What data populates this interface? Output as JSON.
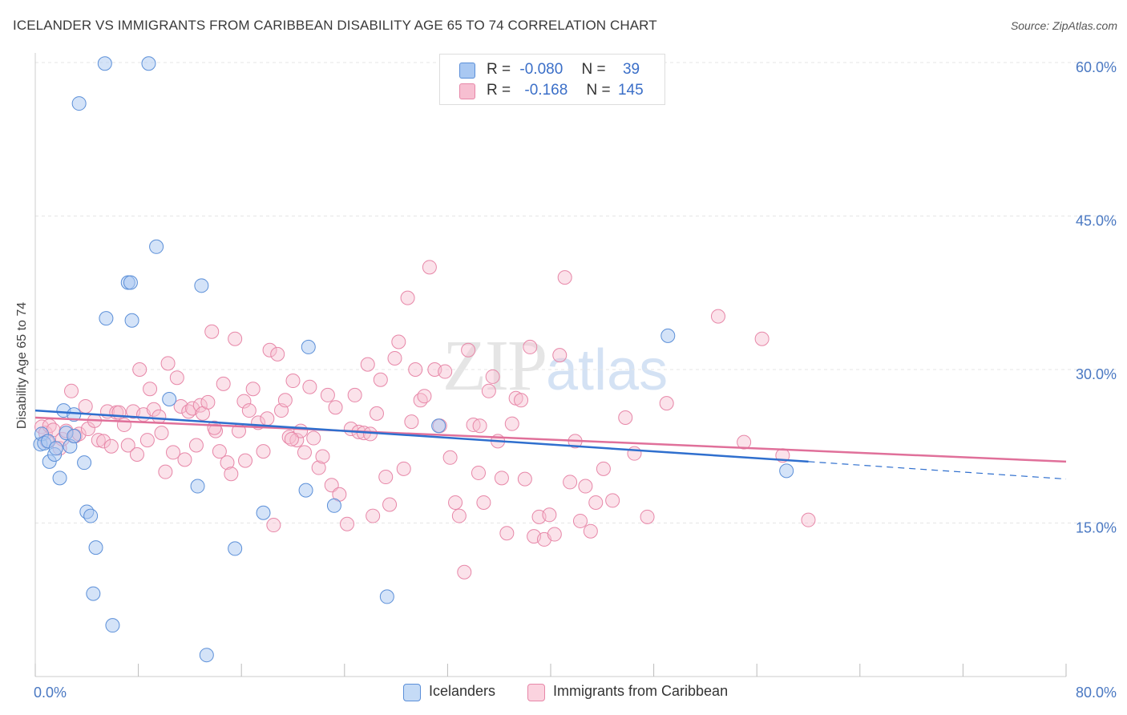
{
  "header": {
    "title": "ICELANDER VS IMMIGRANTS FROM CARIBBEAN DISABILITY AGE 65 TO 74 CORRELATION CHART",
    "source": "Source: ZipAtlas.com"
  },
  "watermark": {
    "zip": "ZIP",
    "atlas": "atlas"
  },
  "legend": {
    "rows": [
      {
        "r_label": "R =",
        "r_value": "-0.080",
        "n_label": "N =",
        "n_value": "39",
        "color": "#a9c8f2",
        "border": "#5b8fd8"
      },
      {
        "r_label": "R =",
        "r_value": "-0.168",
        "n_label": "N =",
        "n_value": "145",
        "color": "#f7bfd1",
        "border": "#e787a8"
      }
    ]
  },
  "bottom_legend": [
    {
      "label": "Icelanders",
      "color": "#c5dbf6",
      "border": "#5b8fd8"
    },
    {
      "label": "Immigrants from Caribbean",
      "color": "#fbd3df",
      "border": "#e787a8"
    }
  ],
  "colors": {
    "blue_fill": "#a9c8f2",
    "blue_stroke": "#5b8fd8",
    "blue_line": "#2f6fce",
    "pink_fill": "#f7bfd1",
    "pink_stroke": "#e787a8",
    "pink_line": "#e0709a",
    "grid": "#e6e6e6",
    "axis_label": "#4a78c2"
  },
  "chart_data": {
    "type": "scatter",
    "title": "ICELANDER VS IMMIGRANTS FROM CARIBBEAN DISABILITY AGE 65 TO 74 CORRELATION CHART",
    "xlabel": "",
    "ylabel": "Disability Age 65 to 74",
    "xlim": [
      0,
      80
    ],
    "ylim": [
      0,
      60
    ],
    "x_tick_labels": [
      "0.0%",
      "80.0%"
    ],
    "y_tick_labels": [
      "15.0%",
      "30.0%",
      "45.0%",
      "60.0%"
    ],
    "y_ticks": [
      15,
      30,
      45,
      60
    ],
    "x_minor_ticks": [
      0,
      8,
      16,
      24,
      32,
      40,
      48,
      56,
      64,
      72,
      80
    ],
    "grid": true,
    "legend_position": "top-center",
    "series": [
      {
        "name": "Icelanders",
        "color": "#a9c8f2",
        "trend": {
          "x": [
            0,
            60
          ],
          "y": [
            26.0,
            21.0
          ],
          "dashed_to": [
            80,
            19.3
          ]
        },
        "points": [
          [
            0.4,
            22.7
          ],
          [
            0.5,
            23.7
          ],
          [
            0.7,
            22.8
          ],
          [
            1.0,
            23.0
          ],
          [
            1.1,
            21.0
          ],
          [
            1.5,
            21.7
          ],
          [
            1.6,
            22.3
          ],
          [
            1.9,
            19.4
          ],
          [
            2.2,
            26.0
          ],
          [
            2.4,
            23.8
          ],
          [
            2.7,
            22.5
          ],
          [
            3.0,
            23.5
          ],
          [
            3.0,
            25.6
          ],
          [
            3.4,
            56.0
          ],
          [
            3.8,
            20.9
          ],
          [
            4.0,
            16.1
          ],
          [
            4.3,
            15.7
          ],
          [
            4.5,
            8.1
          ],
          [
            4.7,
            12.6
          ],
          [
            5.4,
            59.9
          ],
          [
            5.5,
            35.0
          ],
          [
            6.0,
            5.0
          ],
          [
            7.2,
            38.5
          ],
          [
            7.4,
            38.5
          ],
          [
            7.5,
            34.8
          ],
          [
            8.8,
            59.9
          ],
          [
            9.4,
            42.0
          ],
          [
            10.4,
            27.1
          ],
          [
            12.6,
            18.6
          ],
          [
            12.9,
            38.2
          ],
          [
            13.3,
            2.1
          ],
          [
            15.5,
            12.5
          ],
          [
            17.7,
            16.0
          ],
          [
            21.0,
            18.2
          ],
          [
            21.2,
            32.2
          ],
          [
            23.2,
            16.7
          ],
          [
            27.3,
            7.8
          ],
          [
            31.3,
            24.5
          ],
          [
            49.1,
            33.3
          ],
          [
            58.3,
            20.1
          ]
        ]
      },
      {
        "name": "Immigrants from Caribbean",
        "color": "#f7bfd1",
        "trend": {
          "x": [
            0,
            80
          ],
          "y": [
            25.3,
            21.0
          ]
        },
        "points": [
          [
            0.5,
            24.4
          ],
          [
            0.8,
            23.8
          ],
          [
            0.9,
            23.0
          ],
          [
            1.1,
            24.5
          ],
          [
            1.4,
            24.1
          ],
          [
            1.9,
            22.3
          ],
          [
            2.1,
            23.2
          ],
          [
            2.4,
            24.0
          ],
          [
            2.8,
            27.9
          ],
          [
            3.1,
            23.5
          ],
          [
            3.4,
            23.7
          ],
          [
            3.9,
            26.4
          ],
          [
            4.1,
            24.2
          ],
          [
            4.6,
            25.0
          ],
          [
            4.9,
            23.1
          ],
          [
            5.3,
            23.0
          ],
          [
            5.6,
            25.9
          ],
          [
            5.9,
            22.5
          ],
          [
            6.3,
            25.8
          ],
          [
            6.5,
            25.8
          ],
          [
            6.9,
            24.6
          ],
          [
            7.2,
            22.6
          ],
          [
            7.6,
            25.9
          ],
          [
            7.9,
            21.7
          ],
          [
            8.1,
            30.0
          ],
          [
            8.4,
            25.6
          ],
          [
            8.7,
            23.1
          ],
          [
            8.9,
            28.1
          ],
          [
            9.2,
            26.1
          ],
          [
            9.6,
            25.4
          ],
          [
            9.8,
            23.8
          ],
          [
            10.1,
            20.0
          ],
          [
            10.3,
            30.6
          ],
          [
            10.7,
            21.9
          ],
          [
            11.0,
            29.2
          ],
          [
            11.3,
            26.4
          ],
          [
            11.6,
            21.2
          ],
          [
            11.9,
            25.9
          ],
          [
            12.2,
            26.2
          ],
          [
            12.5,
            22.6
          ],
          [
            12.8,
            26.5
          ],
          [
            13.0,
            25.7
          ],
          [
            13.4,
            26.8
          ],
          [
            13.7,
            33.7
          ],
          [
            14.0,
            24.0
          ],
          [
            14.3,
            22.0
          ],
          [
            14.6,
            28.6
          ],
          [
            14.9,
            20.9
          ],
          [
            15.2,
            19.8
          ],
          [
            15.5,
            33.0
          ],
          [
            15.8,
            24.0
          ],
          [
            16.2,
            26.9
          ],
          [
            16.6,
            26.0
          ],
          [
            16.9,
            28.1
          ],
          [
            17.3,
            24.8
          ],
          [
            17.7,
            22.0
          ],
          [
            18.0,
            25.2
          ],
          [
            18.2,
            31.9
          ],
          [
            18.5,
            14.8
          ],
          [
            18.8,
            31.5
          ],
          [
            19.1,
            26.0
          ],
          [
            19.4,
            27.0
          ],
          [
            19.7,
            23.4
          ],
          [
            20.0,
            28.9
          ],
          [
            20.3,
            23.1
          ],
          [
            20.6,
            24.0
          ],
          [
            20.9,
            21.9
          ],
          [
            21.3,
            28.3
          ],
          [
            21.6,
            23.3
          ],
          [
            22.0,
            20.4
          ],
          [
            22.3,
            21.5
          ],
          [
            22.7,
            27.5
          ],
          [
            23.0,
            18.7
          ],
          [
            23.3,
            26.3
          ],
          [
            23.6,
            17.8
          ],
          [
            24.2,
            14.9
          ],
          [
            24.5,
            24.2
          ],
          [
            24.8,
            27.5
          ],
          [
            25.1,
            23.9
          ],
          [
            25.5,
            23.8
          ],
          [
            25.8,
            30.5
          ],
          [
            26.2,
            15.7
          ],
          [
            26.5,
            25.7
          ],
          [
            26.8,
            29.0
          ],
          [
            27.2,
            19.5
          ],
          [
            27.5,
            16.8
          ],
          [
            27.9,
            31.1
          ],
          [
            28.2,
            32.7
          ],
          [
            28.6,
            20.3
          ],
          [
            28.9,
            37.0
          ],
          [
            29.2,
            24.9
          ],
          [
            29.5,
            30.0
          ],
          [
            29.9,
            27.0
          ],
          [
            30.2,
            27.4
          ],
          [
            30.6,
            40.0
          ],
          [
            31.0,
            30.0
          ],
          [
            31.4,
            24.5
          ],
          [
            31.8,
            29.8
          ],
          [
            32.2,
            21.4
          ],
          [
            32.6,
            17.0
          ],
          [
            32.9,
            15.7
          ],
          [
            33.3,
            10.2
          ],
          [
            33.6,
            31.9
          ],
          [
            34.0,
            24.6
          ],
          [
            34.4,
            19.9
          ],
          [
            34.8,
            17.0
          ],
          [
            35.2,
            27.9
          ],
          [
            35.5,
            29.3
          ],
          [
            35.9,
            23.0
          ],
          [
            36.2,
            19.4
          ],
          [
            36.6,
            14.0
          ],
          [
            37.0,
            24.7
          ],
          [
            37.3,
            27.2
          ],
          [
            37.7,
            27.0
          ],
          [
            38.0,
            19.3
          ],
          [
            38.4,
            32.2
          ],
          [
            38.7,
            13.7
          ],
          [
            39.1,
            15.6
          ],
          [
            39.5,
            13.4
          ],
          [
            39.9,
            15.8
          ],
          [
            40.3,
            13.9
          ],
          [
            40.7,
            31.4
          ],
          [
            41.1,
            39.0
          ],
          [
            41.5,
            19.0
          ],
          [
            41.9,
            23.0
          ],
          [
            42.3,
            15.2
          ],
          [
            42.7,
            18.6
          ],
          [
            43.1,
            14.2
          ],
          [
            43.5,
            17.0
          ],
          [
            44.1,
            20.3
          ],
          [
            44.8,
            17.2
          ],
          [
            45.8,
            25.3
          ],
          [
            46.5,
            21.8
          ],
          [
            47.5,
            15.6
          ],
          [
            49.0,
            26.7
          ],
          [
            53.0,
            35.2
          ],
          [
            55.0,
            22.9
          ],
          [
            56.4,
            33.0
          ],
          [
            58.0,
            21.6
          ],
          [
            60.0,
            15.3
          ],
          [
            13.9,
            24.3
          ],
          [
            16.3,
            21.1
          ],
          [
            19.9,
            23.2
          ],
          [
            26.0,
            23.7
          ],
          [
            34.5,
            24.5
          ]
        ]
      }
    ]
  }
}
